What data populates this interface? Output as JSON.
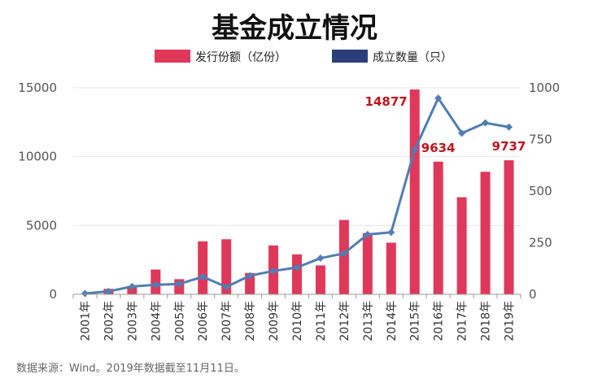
{
  "chart_data": {
    "type": "bar",
    "title": "基金成立情况",
    "categories": [
      "2001年",
      "2002年",
      "2003年",
      "2004年",
      "2005年",
      "2006年",
      "2007年",
      "2008年",
      "2009年",
      "2010年",
      "2011年",
      "2012年",
      "2013年",
      "2014年",
      "2015年",
      "2016年",
      "2017年",
      "2018年",
      "2019年"
    ],
    "series": [
      {
        "name": "发行份额（亿份）",
        "type": "bar",
        "axis": "left",
        "color": "#e0385a",
        "values": [
          20,
          400,
          600,
          1800,
          1100,
          3850,
          4000,
          1550,
          3550,
          2900,
          2100,
          5400,
          4450,
          3750,
          14877,
          9634,
          7050,
          8900,
          9737
        ]
      },
      {
        "name": "成立数量（只）",
        "type": "line",
        "axis": "right",
        "legend_color": "#2c3e7a",
        "color": "#4f7eb3",
        "values": [
          4,
          14,
          38,
          46,
          50,
          85,
          36,
          90,
          113,
          130,
          175,
          198,
          290,
          300,
          700,
          950,
          780,
          830,
          810
        ]
      }
    ],
    "ylim_left": [
      0,
      15000
    ],
    "yticks_left": [
      0,
      5000,
      10000,
      15000
    ],
    "ylim_right": [
      0,
      1000
    ],
    "yticks_right": [
      0,
      250,
      500,
      750,
      1000
    ],
    "data_labels": [
      {
        "category": "2015年",
        "text": "14877"
      },
      {
        "category": "2016年",
        "text": "9634"
      },
      {
        "category": "2019年",
        "text": "9737"
      }
    ],
    "grid": true,
    "legend": "top",
    "source": "数据来源：Wind。2019年数据截至11月11日。"
  }
}
